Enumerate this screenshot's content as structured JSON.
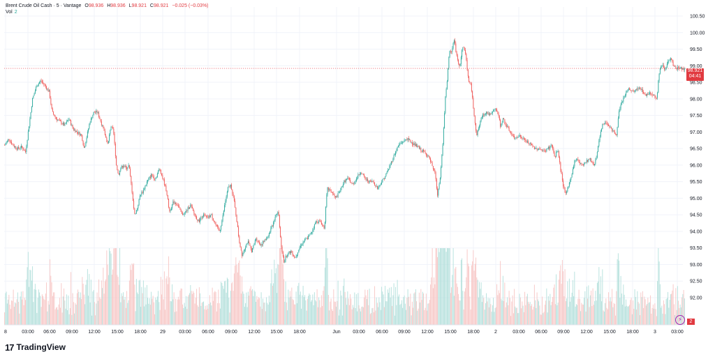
{
  "legend": {
    "symbol": "Brent Crude Oil Cash · 5 · Vantage",
    "open_label": "O",
    "open": "98.936",
    "high_label": "H",
    "high": "98.936",
    "low_label": "L",
    "low": "98.921",
    "close_label": "C",
    "close": "98.921",
    "change": "−0.025 (−0.03%)",
    "vol_label": "Vol",
    "vol": "2"
  },
  "price_tag": {
    "price": "98.921",
    "countdown": "04:41"
  },
  "volume_tag": "2",
  "brand": "TradingView",
  "colors": {
    "up": "#26a69a",
    "down": "#ef5350",
    "price_line": "#e13a40",
    "grid": "#f0f3fa",
    "axis_text": "#131722"
  },
  "chart_data": {
    "type": "candlestick",
    "title": "Brent Crude Oil Cash · 5 · Vantage",
    "interval": "5",
    "last_price": 98.921,
    "ylim": [
      91.75,
      100.75
    ],
    "y_ticks": [
      "100.50",
      "100.00",
      "99.50",
      "99.00",
      "98.50",
      "98.00",
      "97.50",
      "97.00",
      "96.50",
      "96.00",
      "95.50",
      "95.00",
      "94.50",
      "94.00",
      "93.50",
      "93.00",
      "92.50",
      "92.00"
    ],
    "x_ticks": [
      "8",
      "03:00",
      "06:00",
      "09:00",
      "12:00",
      "15:00",
      "18:00",
      "29",
      "03:00",
      "06:00",
      "09:00",
      "12:00",
      "15:00",
      "18:00",
      "Jun",
      "03:00",
      "06:00",
      "09:00",
      "12:00",
      "15:00",
      "18:00",
      "2",
      "03:00",
      "06:00",
      "09:00",
      "12:00",
      "15:00",
      "18:00",
      "3",
      "03:00"
    ],
    "grid": true,
    "close_path": [
      [
        0,
        96.6
      ],
      [
        6,
        96.8
      ],
      [
        12,
        96.6
      ],
      [
        18,
        96.5
      ],
      [
        24,
        96.55
      ],
      [
        30,
        96.4
      ],
      [
        35,
        97.2
      ],
      [
        40,
        98.0
      ],
      [
        46,
        98.4
      ],
      [
        52,
        98.55
      ],
      [
        58,
        98.4
      ],
      [
        64,
        98.2
      ],
      [
        68,
        97.6
      ],
      [
        74,
        97.4
      ],
      [
        80,
        97.3
      ],
      [
        86,
        97.2
      ],
      [
        92,
        97.4
      ],
      [
        98,
        97.1
      ],
      [
        104,
        97.0
      ],
      [
        110,
        96.9
      ],
      [
        114,
        96.5
      ],
      [
        118,
        96.9
      ],
      [
        122,
        97.3
      ],
      [
        128,
        97.6
      ],
      [
        133,
        97.6
      ],
      [
        138,
        97.3
      ],
      [
        144,
        96.9
      ],
      [
        148,
        96.6
      ],
      [
        152,
        97.2
      ],
      [
        156,
        97.0
      ],
      [
        160,
        96.0
      ],
      [
        163,
        95.7
      ],
      [
        166,
        95.9
      ],
      [
        170,
        96.0
      ],
      [
        174,
        95.9
      ],
      [
        178,
        96.0
      ],
      [
        182,
        95.3
      ],
      [
        186,
        94.5
      ],
      [
        190,
        94.7
      ],
      [
        194,
        95.1
      ],
      [
        198,
        95.2
      ],
      [
        204,
        95.5
      ],
      [
        210,
        95.7
      ],
      [
        216,
        95.6
      ],
      [
        222,
        95.9
      ],
      [
        228,
        95.5
      ],
      [
        232,
        95.2
      ],
      [
        236,
        94.6
      ],
      [
        242,
        94.9
      ],
      [
        248,
        94.8
      ],
      [
        254,
        94.5
      ],
      [
        260,
        94.6
      ],
      [
        266,
        94.8
      ],
      [
        272,
        94.5
      ],
      [
        278,
        94.3
      ],
      [
        284,
        94.5
      ],
      [
        290,
        94.4
      ],
      [
        296,
        94.5
      ],
      [
        302,
        94.2
      ],
      [
        308,
        94.0
      ],
      [
        312,
        94.4
      ],
      [
        316,
        94.9
      ],
      [
        320,
        95.3
      ],
      [
        324,
        95.4
      ],
      [
        328,
        95.0
      ],
      [
        332,
        94.4
      ],
      [
        336,
        93.7
      ],
      [
        340,
        93.3
      ],
      [
        344,
        93.5
      ],
      [
        348,
        93.7
      ],
      [
        354,
        93.4
      ],
      [
        360,
        93.8
      ],
      [
        366,
        93.6
      ],
      [
        372,
        93.7
      ],
      [
        378,
        93.9
      ],
      [
        384,
        94.2
      ],
      [
        388,
        94.5
      ],
      [
        392,
        94.6
      ],
      [
        396,
        93.6
      ],
      [
        400,
        93.1
      ],
      [
        404,
        93.3
      ],
      [
        410,
        93.4
      ],
      [
        416,
        93.2
      ],
      [
        422,
        93.5
      ],
      [
        428,
        93.7
      ],
      [
        434,
        93.8
      ],
      [
        440,
        94.0
      ],
      [
        446,
        94.3
      ],
      [
        452,
        94.3
      ],
      [
        458,
        94.1
      ],
      [
        462,
        95.3
      ],
      [
        468,
        95.2
      ],
      [
        474,
        95.0
      ],
      [
        480,
        95.2
      ],
      [
        486,
        95.5
      ],
      [
        492,
        95.6
      ],
      [
        498,
        95.4
      ],
      [
        504,
        95.6
      ],
      [
        510,
        95.8
      ],
      [
        516,
        95.6
      ],
      [
        522,
        95.5
      ],
      [
        528,
        95.5
      ],
      [
        534,
        95.3
      ],
      [
        540,
        95.5
      ],
      [
        546,
        95.7
      ],
      [
        552,
        96.0
      ],
      [
        558,
        96.3
      ],
      [
        564,
        96.6
      ],
      [
        570,
        96.7
      ],
      [
        576,
        96.8
      ],
      [
        582,
        96.7
      ],
      [
        588,
        96.6
      ],
      [
        594,
        96.5
      ],
      [
        600,
        96.4
      ],
      [
        606,
        96.3
      ],
      [
        612,
        96.0
      ],
      [
        616,
        95.8
      ],
      [
        620,
        95.1
      ],
      [
        624,
        95.7
      ],
      [
        628,
        96.8
      ],
      [
        631,
        98.0
      ],
      [
        634,
        98.6
      ],
      [
        637,
        99.5
      ],
      [
        640,
        99.4
      ],
      [
        644,
        99.8
      ],
      [
        648,
        99.2
      ],
      [
        652,
        99.0
      ],
      [
        656,
        99.6
      ],
      [
        660,
        99.4
      ],
      [
        664,
        98.6
      ],
      [
        668,
        98.4
      ],
      [
        672,
        97.6
      ],
      [
        676,
        96.9
      ],
      [
        680,
        97.2
      ],
      [
        684,
        97.5
      ],
      [
        690,
        97.6
      ],
      [
        696,
        97.5
      ],
      [
        702,
        97.7
      ],
      [
        706,
        97.6
      ],
      [
        710,
        97.2
      ],
      [
        714,
        97.4
      ],
      [
        718,
        97.2
      ],
      [
        724,
        97.0
      ],
      [
        730,
        96.8
      ],
      [
        736,
        96.9
      ],
      [
        742,
        96.8
      ],
      [
        748,
        96.7
      ],
      [
        754,
        96.6
      ],
      [
        760,
        96.5
      ],
      [
        766,
        96.5
      ],
      [
        772,
        96.4
      ],
      [
        778,
        96.5
      ],
      [
        784,
        96.6
      ],
      [
        788,
        96.2
      ],
      [
        792,
        96.5
      ],
      [
        796,
        95.9
      ],
      [
        800,
        95.4
      ],
      [
        804,
        95.1
      ],
      [
        808,
        95.4
      ],
      [
        812,
        95.7
      ],
      [
        816,
        96.1
      ],
      [
        820,
        96.2
      ],
      [
        826,
        96.0
      ],
      [
        832,
        96.1
      ],
      [
        838,
        96.2
      ],
      [
        844,
        96.0
      ],
      [
        848,
        96.3
      ],
      [
        852,
        96.8
      ],
      [
        856,
        97.2
      ],
      [
        860,
        97.3
      ],
      [
        866,
        97.2
      ],
      [
        872,
        97.0
      ],
      [
        876,
        96.9
      ],
      [
        880,
        97.6
      ],
      [
        884,
        97.9
      ],
      [
        888,
        98.1
      ],
      [
        894,
        98.3
      ],
      [
        900,
        98.2
      ],
      [
        906,
        98.3
      ],
      [
        912,
        98.3
      ],
      [
        918,
        98.1
      ],
      [
        924,
        98.2
      ],
      [
        930,
        98.1
      ],
      [
        934,
        98.0
      ],
      [
        938,
        98.9
      ],
      [
        942,
        99.0
      ],
      [
        946,
        98.9
      ],
      [
        950,
        99.1
      ],
      [
        954,
        99.2
      ],
      [
        958,
        99.0
      ],
      [
        962,
        98.9
      ],
      [
        966,
        98.95
      ],
      [
        970,
        98.9
      ],
      [
        974,
        98.921
      ]
    ],
    "volume_scale_max": 100
  }
}
